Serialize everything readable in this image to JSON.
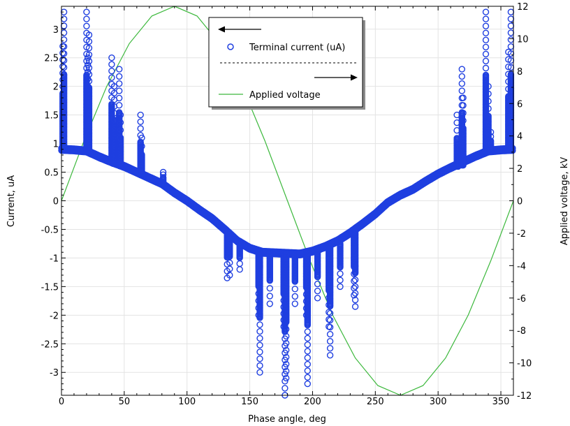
{
  "chart_data": {
    "type": "scatter",
    "xlabel": "Phase angle, deg",
    "ylabel_left": "Current, uA",
    "ylabel_right": "Applied voltage, kV",
    "xlim": [
      0,
      360
    ],
    "ylim_left": [
      -3.4,
      3.4
    ],
    "ylim_right": [
      -12,
      12
    ],
    "x_ticks": [
      "0",
      "50",
      "100",
      "150",
      "200",
      "250",
      "300",
      "350"
    ],
    "y_left_ticks": [
      "3",
      "2.5",
      "2",
      "1.5",
      "1",
      "0.5",
      "0",
      "-0.5",
      "-1",
      "-1.5",
      "-2",
      "-2.5",
      "-3"
    ],
    "y_right_ticks": [
      "12",
      "10",
      "8",
      "6",
      "4",
      "2",
      "0",
      "-2",
      "-4",
      "-6",
      "-8",
      "-10",
      "-12"
    ],
    "grid": true,
    "legend": {
      "placement": "top-center",
      "entries": [
        "Terminal current (uA)",
        "Applied voltage"
      ]
    },
    "series": [
      {
        "name": "Terminal current (uA)",
        "axis": "left",
        "marker": "circle",
        "color": "#1f3fe0",
        "baseline_x": [
          0,
          10,
          20,
          30,
          40,
          50,
          60,
          70,
          80,
          90,
          100,
          110,
          120,
          130,
          140,
          150,
          160,
          170,
          180,
          190,
          200,
          210,
          220,
          230,
          240,
          250,
          260,
          270,
          280,
          290,
          300,
          310,
          320,
          330,
          340,
          350,
          360
        ],
        "baseline_y": [
          0.88,
          0.87,
          0.85,
          0.75,
          0.66,
          0.58,
          0.48,
          0.38,
          0.28,
          0.12,
          -0.02,
          -0.18,
          -0.33,
          -0.52,
          -0.72,
          -0.85,
          -0.92,
          -0.93,
          -0.94,
          -0.95,
          -0.9,
          -0.82,
          -0.72,
          -0.58,
          -0.42,
          -0.25,
          -0.05,
          0.08,
          0.18,
          0.32,
          0.45,
          0.56,
          0.66,
          0.76,
          0.85,
          0.87,
          0.88
        ],
        "pulses": [
          {
            "x": 1,
            "from": 0.88,
            "to": 2.7
          },
          {
            "x": 2,
            "from": 0.88,
            "to": 3.3
          },
          {
            "x": 20,
            "from": 0.85,
            "to": 3.3
          },
          {
            "x": 21,
            "from": 0.85,
            "to": 2.5
          },
          {
            "x": 22,
            "from": 0.85,
            "to": 2.9
          },
          {
            "x": 40,
            "from": 0.7,
            "to": 2.5
          },
          {
            "x": 42,
            "from": 0.7,
            "to": 2.0
          },
          {
            "x": 46,
            "from": 0.62,
            "to": 2.3
          },
          {
            "x": 47,
            "from": 0.62,
            "to": 1.5
          },
          {
            "x": 63,
            "from": 0.45,
            "to": 1.5
          },
          {
            "x": 64,
            "from": 0.45,
            "to": 1.1
          },
          {
            "x": 81,
            "from": 0.3,
            "to": 0.5
          },
          {
            "x": 132,
            "from": -0.55,
            "to": -1.35
          },
          {
            "x": 134,
            "from": -0.58,
            "to": -1.3
          },
          {
            "x": 142,
            "from": -0.75,
            "to": -1.2
          },
          {
            "x": 157,
            "from": -0.88,
            "to": -2.0
          },
          {
            "x": 158,
            "from": -0.88,
            "to": -3.0
          },
          {
            "x": 166,
            "from": -0.9,
            "to": -1.8
          },
          {
            "x": 177,
            "from": -0.93,
            "to": -2.2
          },
          {
            "x": 178,
            "from": -0.93,
            "to": -3.4
          },
          {
            "x": 179,
            "from": -0.93,
            "to": -3.1
          },
          {
            "x": 186,
            "from": -0.94,
            "to": -1.8
          },
          {
            "x": 195,
            "from": -0.92,
            "to": -2.0
          },
          {
            "x": 196,
            "from": -0.92,
            "to": -3.2
          },
          {
            "x": 204,
            "from": -0.88,
            "to": -1.7
          },
          {
            "x": 213,
            "from": -0.8,
            "to": -2.2
          },
          {
            "x": 214,
            "from": -0.8,
            "to": -2.7
          },
          {
            "x": 222,
            "from": -0.75,
            "to": -1.5
          },
          {
            "x": 233,
            "from": -0.55,
            "to": -1.65
          },
          {
            "x": 234,
            "from": -0.55,
            "to": -1.85
          },
          {
            "x": 315,
            "from": 0.6,
            "to": 1.5
          },
          {
            "x": 316,
            "from": 0.6,
            "to": 1.0
          },
          {
            "x": 319,
            "from": 0.62,
            "to": 2.3
          },
          {
            "x": 320,
            "from": 0.62,
            "to": 1.8
          },
          {
            "x": 338,
            "from": 0.85,
            "to": 3.3
          },
          {
            "x": 340,
            "from": 0.85,
            "to": 2.0
          },
          {
            "x": 342,
            "from": 0.86,
            "to": 1.2
          },
          {
            "x": 356,
            "from": 0.88,
            "to": 2.6
          },
          {
            "x": 358,
            "from": 0.88,
            "to": 3.3
          }
        ]
      },
      {
        "name": "Applied voltage",
        "axis": "right",
        "marker": "line",
        "color": "#3cb83c",
        "x": [
          0,
          18,
          36,
          54,
          72,
          90,
          108,
          126,
          144,
          162,
          180,
          198,
          216,
          234,
          252,
          270,
          288,
          306,
          324,
          342,
          360
        ],
        "y": [
          0,
          3.7,
          7.05,
          9.7,
          11.4,
          12,
          11.4,
          9.7,
          7.05,
          3.7,
          0,
          -3.7,
          -7.05,
          -9.7,
          -11.4,
          -12,
          -11.4,
          -9.7,
          -7.05,
          -3.7,
          0
        ]
      }
    ]
  }
}
